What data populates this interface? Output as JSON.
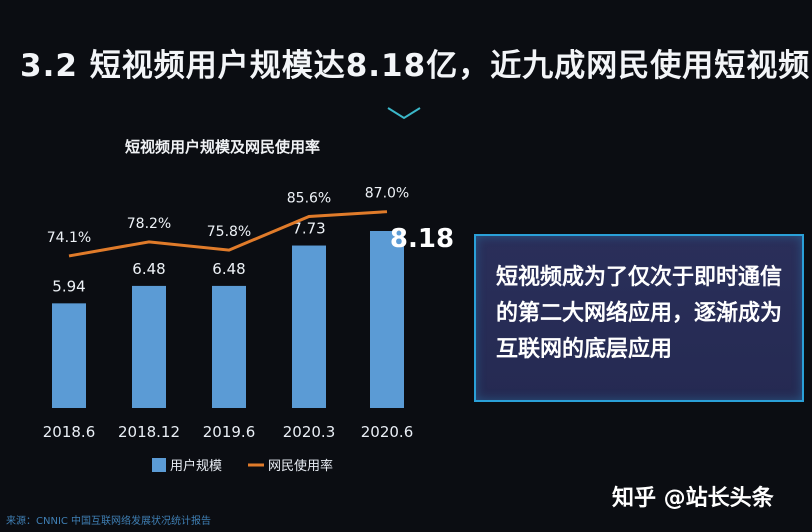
{
  "header": {
    "title": "3.2 短视频用户规模达8.18亿，近九成网民使用短视频"
  },
  "chart_data": {
    "type": "bar",
    "title": "短视频用户规模及网民使用率",
    "categories": [
      "2018.6",
      "2018.12",
      "2019.6",
      "2020.3",
      "2020.6"
    ],
    "series": [
      {
        "name": "用户规模",
        "type": "bar",
        "values": [
          5.94,
          6.48,
          6.48,
          7.73,
          8.18
        ],
        "labels": [
          "5.94",
          "6.48",
          "6.48",
          "7.73",
          "8.18"
        ],
        "color": "#5b9bd5"
      },
      {
        "name": "网民使用率",
        "type": "line",
        "values": [
          74.1,
          78.2,
          75.8,
          85.6,
          87.0
        ],
        "labels": [
          "74.1%",
          "78.2%",
          "75.8%",
          "85.6%",
          "87.0%"
        ],
        "color": "#e07b2a"
      }
    ],
    "legend_position": "bottom",
    "grid": false
  },
  "callout": {
    "text": "短视频成为了仅次于即时通信的第二大网络应用，逐渐成为互联网的底层应用"
  },
  "watermark": "知乎 @站长头条",
  "source": "来源：CNNIC 中国互联网络发展状况统计报告",
  "colors": {
    "background": "#0b0d12",
    "accent": "#2aa0d8"
  }
}
